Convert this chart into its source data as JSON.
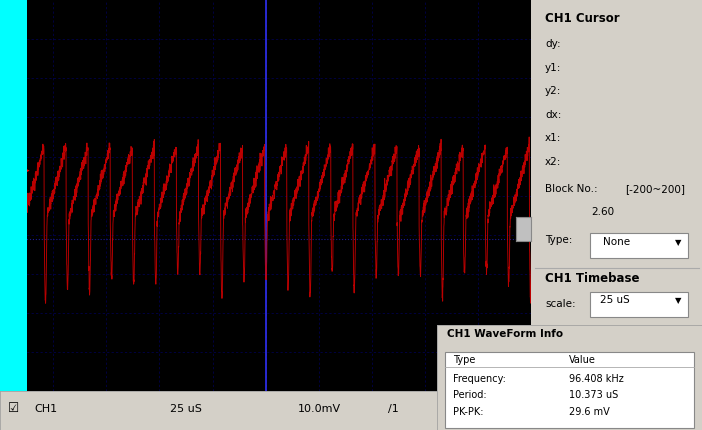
{
  "oscilloscope_bg": "#000000",
  "cyan_bar_color": "#00FFFF",
  "grid_color": "#0000CC",
  "waveform_color": "#CC0000",
  "panel_bg": "#D4D0C8",
  "freq_khz": 96.408,
  "period_us": 10.373,
  "pk_pk_mv": 29.6,
  "timebase_us": 25,
  "voltage_scale_mv": 10.0,
  "channel": "CH1",
  "block_no": "[-200~200]",
  "block_val": "2.60",
  "cursor_type": "None"
}
